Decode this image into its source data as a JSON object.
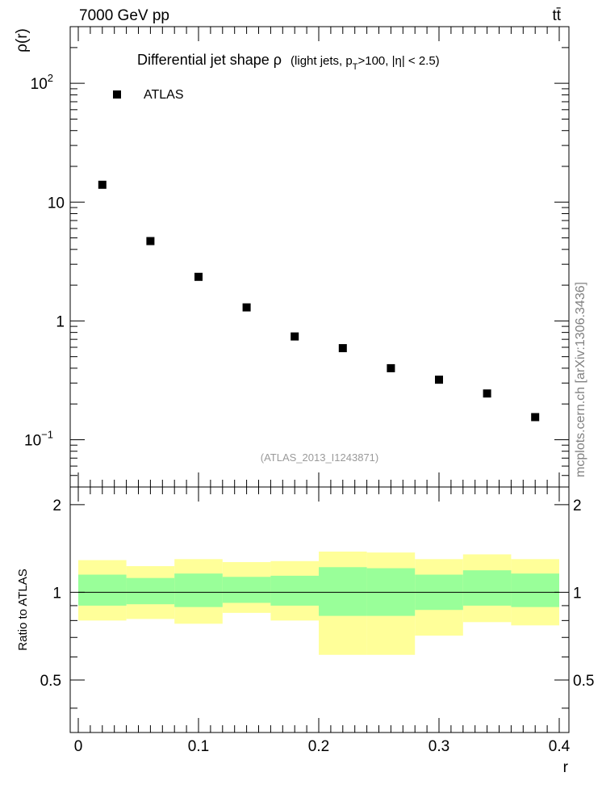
{
  "header": {
    "energy": "7000 GeV pp",
    "process": "tt̄"
  },
  "side_label": "mcplots.cern.ch [arXiv:1306.3436]",
  "chart_data": [
    {
      "type": "scatter",
      "title": {
        "main": "Differential jet shape  ρ",
        "cut_a": "(light jets, p",
        "cut_sub": "T",
        "cut_b": ">100, |η| < 2.5)"
      },
      "ylabel": "ρ(r)",
      "yscale": "log",
      "ylim": [
        0.04,
        300
      ],
      "xlim": [
        0,
        0.4
      ],
      "y_tick_labels": [
        {
          "value": 100,
          "label": "10",
          "sup": "2"
        },
        {
          "value": 10,
          "label": "10",
          "sup": ""
        },
        {
          "value": 1,
          "label": "1",
          "sup": ""
        },
        {
          "value": 0.1,
          "label": "10",
          "sup": "−1"
        }
      ],
      "legend": {
        "label": "ATLAS",
        "position": "top-left"
      },
      "reference": "(ATLAS_2013_I1243871)",
      "series": [
        {
          "name": "ATLAS",
          "x": [
            0.02,
            0.06,
            0.1,
            0.14,
            0.18,
            0.22,
            0.26,
            0.3,
            0.34,
            0.38
          ],
          "y": [
            14.0,
            4.7,
            2.35,
            1.3,
            0.74,
            0.59,
            0.4,
            0.32,
            0.245,
            0.155
          ]
        }
      ]
    },
    {
      "type": "area",
      "ylabel": "Ratio to ATLAS",
      "xlabel": "r",
      "xlim": [
        0,
        0.4
      ],
      "ylim": [
        0.33,
        2.3
      ],
      "x_tick_labels": [
        "0",
        "0.1",
        "0.2",
        "0.3",
        "0.4"
      ],
      "x_ticks": [
        0,
        0.1,
        0.2,
        0.3,
        0.4
      ],
      "y_tick_labels": [
        "0.5",
        "1",
        "2"
      ],
      "y_ticks": [
        0.5,
        1,
        2
      ],
      "bin_edges": [
        0.0,
        0.04,
        0.08,
        0.12,
        0.16,
        0.2,
        0.24,
        0.28,
        0.32,
        0.36,
        0.4
      ],
      "band_outer": {
        "color": "#ffff99",
        "low": [
          0.8,
          0.81,
          0.78,
          0.85,
          0.8,
          0.61,
          0.61,
          0.71,
          0.79,
          0.77
        ],
        "high": [
          1.29,
          1.23,
          1.3,
          1.27,
          1.28,
          1.38,
          1.37,
          1.3,
          1.35,
          1.3
        ]
      },
      "band_inner": {
        "color": "#99ff99",
        "low": [
          0.9,
          0.91,
          0.89,
          0.92,
          0.9,
          0.83,
          0.83,
          0.87,
          0.9,
          0.89
        ],
        "high": [
          1.15,
          1.12,
          1.16,
          1.13,
          1.14,
          1.22,
          1.21,
          1.15,
          1.19,
          1.16
        ]
      },
      "reference_line": 1
    }
  ]
}
